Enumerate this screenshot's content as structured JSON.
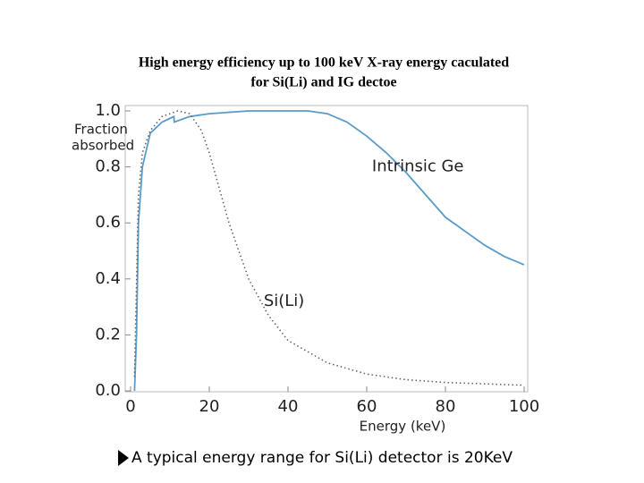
{
  "chart_data": {
    "type": "line",
    "title": [
      "High energy efficiency up to 100 keV X-ray energy caculated",
      "for Si(Li) and IG dectoe"
    ],
    "x_label": "Energy (keV)",
    "y_label": [
      "Fraction",
      "absorbed"
    ],
    "xlim": [
      0,
      100
    ],
    "ylim": [
      0,
      1
    ],
    "xticks": [
      0,
      20,
      40,
      60,
      80,
      100
    ],
    "yticks": [
      {
        "value": 0,
        "label": "0.0"
      },
      0.2,
      0.4,
      0.6,
      0.8,
      {
        "value": 1,
        "label": "1.0"
      }
    ],
    "series": [
      {
        "name": "Intrinsic Ge",
        "color": "#5b9bc8",
        "dash": "solid",
        "x": [
          1,
          1.5,
          2,
          3,
          5,
          8,
          11,
          11.1,
          15,
          20,
          30,
          45,
          50,
          55,
          60,
          65,
          70,
          75,
          80,
          85,
          90,
          95,
          100
        ],
        "values": [
          0,
          0.2,
          0.6,
          0.8,
          0.92,
          0.96,
          0.98,
          0.96,
          0.98,
          0.99,
          1,
          1,
          0.99,
          0.96,
          0.91,
          0.85,
          0.78,
          0.7,
          0.62,
          0.57,
          0.52,
          0.48,
          0.45
        ]
      },
      {
        "name": "Si(Li)",
        "color": "#666666",
        "dash": "dotted",
        "x": [
          1,
          2,
          3,
          5,
          8,
          12,
          15,
          18,
          20,
          22,
          25,
          30,
          35,
          40,
          50,
          60,
          70,
          80,
          100
        ],
        "values": [
          0.05,
          0.7,
          0.85,
          0.93,
          0.98,
          1,
          0.99,
          0.93,
          0.85,
          0.75,
          0.6,
          0.4,
          0.27,
          0.18,
          0.1,
          0.06,
          0.04,
          0.03,
          0.02
        ]
      }
    ],
    "annotations": [
      {
        "text": "Intrinsic Ge",
        "x": 73,
        "y": 0.8
      },
      {
        "text": "Si(Li)",
        "x": 39,
        "y": 0.32
      }
    ],
    "note": "A typical energy range for Si(Li) detector is 20KeV"
  }
}
